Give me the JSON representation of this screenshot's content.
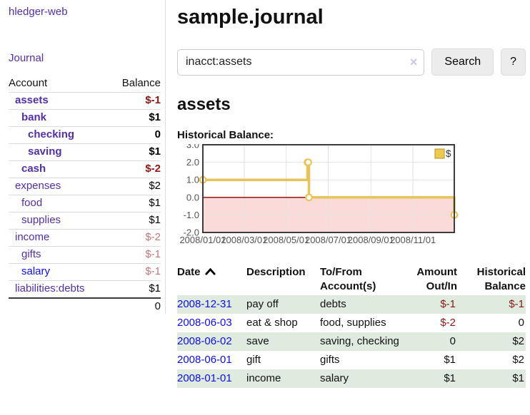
{
  "colors": {
    "link_purple": "#5330a5",
    "link_blue": "#0e0ee8",
    "negative_strong": "#8e1616",
    "negative_dim": "#c07777",
    "row_stripe_green": "#dfebdf",
    "chart_line_gold": "#e8c35a",
    "chart_area_pink": "#fbdada",
    "chart_zero_red": "#8b0000",
    "chart_border": "#3c3c3c",
    "chart_grid": "#e2e2e2",
    "chart_tick_text": "#555555",
    "legend_fill": "#eec94f",
    "legend_border": "#bfa23a"
  },
  "sidebar": {
    "app_title": "hledger-web",
    "journal_link": "Journal",
    "accounts_table": {
      "headers": [
        "Account",
        "Balance"
      ],
      "rows": [
        {
          "account": "assets",
          "balance": "$-1",
          "indent": 1,
          "in_query": true,
          "unvisited": false
        },
        {
          "account": "bank",
          "balance": "$1",
          "indent": 2,
          "in_query": true,
          "unvisited": false
        },
        {
          "account": "checking",
          "balance": "0",
          "indent": 3,
          "in_query": true,
          "unvisited": false
        },
        {
          "account": "saving",
          "balance": "$1",
          "indent": 3,
          "in_query": true,
          "unvisited": false
        },
        {
          "account": "cash",
          "balance": "$-2",
          "indent": 2,
          "in_query": true,
          "unvisited": false
        },
        {
          "account": "expenses",
          "balance": "$2",
          "indent": 1,
          "in_query": false,
          "unvisited": false
        },
        {
          "account": "food",
          "balance": "$1",
          "indent": 2,
          "in_query": false,
          "unvisited": false
        },
        {
          "account": "supplies",
          "balance": "$1",
          "indent": 2,
          "in_query": false,
          "unvisited": false
        },
        {
          "account": "income",
          "balance": "$-2",
          "indent": 1,
          "in_query": false,
          "unvisited": false
        },
        {
          "account": "gifts",
          "balance": "$-1",
          "indent": 2,
          "in_query": false,
          "unvisited": false
        },
        {
          "account": "salary",
          "balance": "$-1",
          "indent": 2,
          "in_query": false,
          "unvisited": true
        },
        {
          "account": "liabilities:debts",
          "balance": "$1",
          "indent": 1,
          "in_query": false,
          "unvisited": false
        }
      ],
      "total": "0"
    }
  },
  "main": {
    "title": "sample.journal",
    "search": {
      "value": "inacct:assets",
      "clear_icon": "×",
      "search_button": "Search",
      "help_button": "?"
    },
    "account_heading": "assets",
    "chart_heading": "Historical Balance:"
  },
  "chart_data": {
    "type": "line",
    "step": true,
    "title": "Historical Balance",
    "legend": "$",
    "legend_position": "top-right",
    "grid": true,
    "ylim": [
      -2,
      3
    ],
    "xlim": [
      "2008-01-01",
      "2008-12-31"
    ],
    "y_ticks": [
      {
        "v": 3,
        "label": "3.0"
      },
      {
        "v": 2,
        "label": "2.0"
      },
      {
        "v": 1,
        "label": "1.0"
      },
      {
        "v": 0,
        "label": "0.0"
      },
      {
        "v": -1,
        "label": "-1.0"
      },
      {
        "v": -2,
        "label": "-2.0"
      }
    ],
    "x_ticks": [
      {
        "date": "2008-01-01",
        "label": "2008/01/01"
      },
      {
        "date": "2008-03-01",
        "label": "2008/03/01"
      },
      {
        "date": "2008-05-01",
        "label": "2008/05/01"
      },
      {
        "date": "2008-07-01",
        "label": "2008/07/01"
      },
      {
        "date": "2008-09-01",
        "label": "2008/09/01"
      },
      {
        "date": "2008-11-01",
        "label": "2008/11/01"
      }
    ],
    "series": [
      {
        "name": "$",
        "points": [
          {
            "date": "2008-01-01",
            "value": 1
          },
          {
            "date": "2008-06-01",
            "value": 2
          },
          {
            "date": "2008-06-02",
            "value": 2
          },
          {
            "date": "2008-06-03",
            "value": 0
          },
          {
            "date": "2008-12-31",
            "value": -1
          }
        ]
      }
    ],
    "negative_region_shaded": true
  },
  "register": {
    "headers": [
      {
        "label": "Date",
        "align": "left",
        "sorted": "asc"
      },
      {
        "label": "Description",
        "align": "left"
      },
      {
        "label": "To/From Account(s)",
        "align": "left"
      },
      {
        "label": "Amount Out/In",
        "align": "right"
      },
      {
        "label": "Historical Balance",
        "align": "right"
      }
    ],
    "rows": [
      {
        "date": "2008-12-31",
        "description": "pay off",
        "accounts": "debts",
        "amount": "$-1",
        "balance": "$-1"
      },
      {
        "date": "2008-06-03",
        "description": "eat & shop",
        "accounts": "food, supplies",
        "amount": "$-2",
        "balance": "0"
      },
      {
        "date": "2008-06-02",
        "description": "save",
        "accounts": "saving, checking",
        "amount": "0",
        "balance": "$2"
      },
      {
        "date": "2008-06-01",
        "description": "gift",
        "accounts": "gifts",
        "amount": "$1",
        "balance": "$2"
      },
      {
        "date": "2008-01-01",
        "description": "income",
        "accounts": "salary",
        "amount": "$1",
        "balance": "$1"
      }
    ]
  }
}
